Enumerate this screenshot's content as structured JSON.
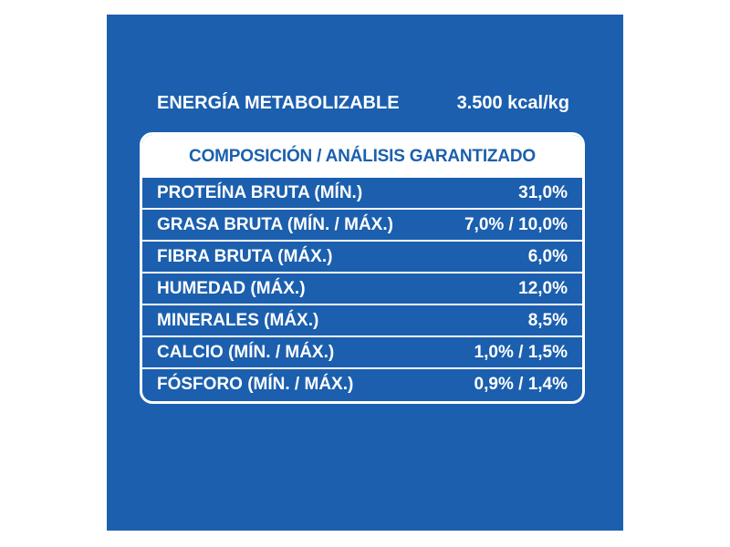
{
  "energy": {
    "label": "ENERGÍA METABOLIZABLE",
    "value": "3.500 kcal/kg"
  },
  "table": {
    "header": "COMPOSICIÓN / ANÁLISIS GARANTIZADO",
    "rows": [
      {
        "label": "PROTEÍNA BRUTA (MÍN.)",
        "value": "31,0%"
      },
      {
        "label": "GRASA BRUTA (MÍN. / MÁX.)",
        "value": "7,0% / 10,0%"
      },
      {
        "label": "FIBRA BRUTA (MÁX.)",
        "value": "6,0%"
      },
      {
        "label": "HUMEDAD (MÁX.)",
        "value": "12,0%"
      },
      {
        "label": "MINERALES (MÁX.)",
        "value": "8,5%"
      },
      {
        "label": "CALCIO (MÍN. / MÁX.)",
        "value": "1,0% / 1,5%"
      },
      {
        "label": "FÓSFORO (MÍN. / MÁX.)",
        "value": "0,9% / 1,4%"
      }
    ]
  },
  "colors": {
    "background": "#1b5fae",
    "text": "#ffffff",
    "header_text": "#1b5fae"
  }
}
